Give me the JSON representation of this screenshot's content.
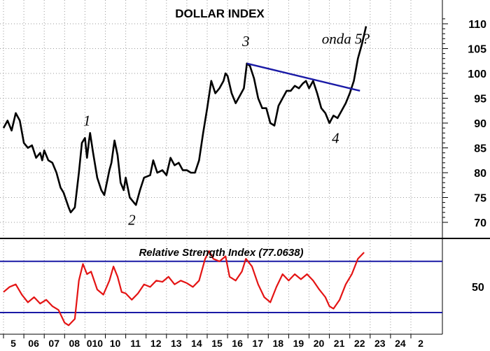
{
  "chart_data": [
    {
      "type": "line",
      "title": "DOLLAR INDEX",
      "ylim": [
        67,
        112
      ],
      "y_ticks": [
        "70",
        "75",
        "80",
        "85",
        "90",
        "95",
        "100",
        "105",
        "110"
      ],
      "x_ticks": [
        "5",
        "06",
        "07",
        "08",
        "010",
        "10",
        "11",
        "12",
        "13",
        "14",
        "15",
        "16",
        "17",
        "18",
        "19",
        "20",
        "21",
        "22",
        "23",
        "24",
        "2"
      ],
      "grid": true,
      "colors": {
        "price": "#000000",
        "trendline": "#1a1aa6"
      },
      "series": [
        {
          "values": [
            [
              2005.0,
              89
            ],
            [
              2005.2,
              90.5
            ],
            [
              2005.4,
              88.5
            ],
            [
              2005.6,
              92
            ],
            [
              2005.8,
              90.5
            ],
            [
              2006.0,
              86
            ],
            [
              2006.2,
              85
            ],
            [
              2006.4,
              85.5
            ],
            [
              2006.6,
              83
            ],
            [
              2006.8,
              84
            ],
            [
              2006.9,
              82.5
            ],
            [
              2007.0,
              84.5
            ],
            [
              2007.2,
              82.5
            ],
            [
              2007.4,
              82
            ],
            [
              2007.6,
              80
            ],
            [
              2007.8,
              77
            ],
            [
              2007.95,
              76
            ],
            [
              2008.2,
              73
            ],
            [
              2008.3,
              72
            ],
            [
              2008.5,
              73
            ],
            [
              2008.7,
              80
            ],
            [
              2008.85,
              86
            ],
            [
              2009.0,
              87
            ],
            [
              2009.1,
              83
            ],
            [
              2009.2,
              86.5
            ],
            [
              2009.25,
              88
            ],
            [
              2009.4,
              84
            ],
            [
              2009.6,
              79
            ],
            [
              2009.8,
              76.5
            ],
            [
              2009.95,
              75.5
            ],
            [
              2010.2,
              80.5
            ],
            [
              2010.3,
              82
            ],
            [
              2010.45,
              86.5
            ],
            [
              2010.6,
              83.5
            ],
            [
              2010.75,
              78
            ],
            [
              2010.9,
              76.5
            ],
            [
              2011.0,
              79
            ],
            [
              2011.2,
              75
            ],
            [
              2011.4,
              74
            ],
            [
              2011.5,
              73.5
            ],
            [
              2011.7,
              76.5
            ],
            [
              2011.9,
              79
            ],
            [
              2012.2,
              79.5
            ],
            [
              2012.35,
              82.5
            ],
            [
              2012.55,
              80
            ],
            [
              2012.8,
              80.5
            ],
            [
              2013.0,
              79.5
            ],
            [
              2013.2,
              83
            ],
            [
              2013.4,
              81.5
            ],
            [
              2013.6,
              82
            ],
            [
              2013.8,
              80.5
            ],
            [
              2014.0,
              80.5
            ],
            [
              2014.2,
              80
            ],
            [
              2014.4,
              80
            ],
            [
              2014.6,
              82.5
            ],
            [
              2014.8,
              88
            ],
            [
              2015.0,
              93
            ],
            [
              2015.2,
              98.5
            ],
            [
              2015.4,
              96
            ],
            [
              2015.6,
              97
            ],
            [
              2015.8,
              98.5
            ],
            [
              2015.9,
              100
            ],
            [
              2016.0,
              99.5
            ],
            [
              2016.2,
              96
            ],
            [
              2016.4,
              94
            ],
            [
              2016.6,
              95.5
            ],
            [
              2016.8,
              97
            ],
            [
              2016.95,
              102
            ],
            [
              2017.1,
              101.5
            ],
            [
              2017.3,
              99
            ],
            [
              2017.5,
              95
            ],
            [
              2017.7,
              93
            ],
            [
              2017.9,
              93
            ],
            [
              2018.1,
              90
            ],
            [
              2018.3,
              89.5
            ],
            [
              2018.5,
              93.5
            ],
            [
              2018.7,
              95
            ],
            [
              2018.9,
              96.5
            ],
            [
              2019.1,
              96.5
            ],
            [
              2019.3,
              97.5
            ],
            [
              2019.5,
              97
            ],
            [
              2019.7,
              98
            ],
            [
              2019.85,
              98.5
            ],
            [
              2020.0,
              97
            ],
            [
              2020.2,
              98.5
            ],
            [
              2020.4,
              96
            ],
            [
              2020.6,
              93
            ],
            [
              2020.8,
              92
            ],
            [
              2021.0,
              90
            ],
            [
              2021.2,
              91.5
            ],
            [
              2021.4,
              91
            ],
            [
              2021.6,
              92.5
            ],
            [
              2021.8,
              94
            ],
            [
              2022.0,
              96
            ],
            [
              2022.2,
              98.5
            ],
            [
              2022.4,
              103
            ],
            [
              2022.6,
              106
            ],
            [
              2022.8,
              109.5
            ]
          ]
        }
      ],
      "trendline": {
        "x": [
          2016.95,
          2022.5
        ],
        "y": [
          102,
          96.5
        ]
      },
      "annotations": [
        {
          "text": "1",
          "x": 2009.1,
          "y": 89.5
        },
        {
          "text": "2",
          "x": 2011.3,
          "y": 69.5
        },
        {
          "text": "3",
          "x": 2016.9,
          "y": 105.5
        },
        {
          "text": "4",
          "x": 2021.3,
          "y": 86
        },
        {
          "text": "onda 5?",
          "x": 2021.8,
          "y": 106
        }
      ]
    },
    {
      "type": "line",
      "title": "Relative Strength Index (77.0638)",
      "y_ticks": [
        "50"
      ],
      "ylim": [
        0,
        100
      ],
      "reference_lines": [
        70,
        30
      ],
      "colors": {
        "rsi": "#e41414",
        "reference_lines": "#1a1aa6"
      },
      "series": [
        {
          "values": [
            [
              2005.0,
              46
            ],
            [
              2005.3,
              50
            ],
            [
              2005.6,
              52
            ],
            [
              2005.9,
              44
            ],
            [
              2006.2,
              38
            ],
            [
              2006.5,
              42
            ],
            [
              2006.8,
              37
            ],
            [
              2007.1,
              40
            ],
            [
              2007.4,
              35
            ],
            [
              2007.7,
              32
            ],
            [
              2008.0,
              22
            ],
            [
              2008.2,
              20
            ],
            [
              2008.5,
              25
            ],
            [
              2008.7,
              55
            ],
            [
              2008.9,
              68
            ],
            [
              2009.1,
              60
            ],
            [
              2009.3,
              62
            ],
            [
              2009.6,
              48
            ],
            [
              2009.9,
              44
            ],
            [
              2010.2,
              55
            ],
            [
              2010.4,
              66
            ],
            [
              2010.6,
              58
            ],
            [
              2010.8,
              46
            ],
            [
              2011.0,
              45
            ],
            [
              2011.3,
              40
            ],
            [
              2011.6,
              45
            ],
            [
              2011.9,
              52
            ],
            [
              2012.2,
              50
            ],
            [
              2012.5,
              55
            ],
            [
              2012.8,
              54
            ],
            [
              2013.1,
              58
            ],
            [
              2013.4,
              52
            ],
            [
              2013.7,
              55
            ],
            [
              2014.0,
              53
            ],
            [
              2014.3,
              50
            ],
            [
              2014.6,
              55
            ],
            [
              2014.9,
              72
            ],
            [
              2015.1,
              78
            ],
            [
              2015.3,
              72
            ],
            [
              2015.6,
              70
            ],
            [
              2015.9,
              74
            ],
            [
              2016.1,
              58
            ],
            [
              2016.4,
              55
            ],
            [
              2016.7,
              62
            ],
            [
              2016.9,
              72
            ],
            [
              2017.2,
              66
            ],
            [
              2017.5,
              52
            ],
            [
              2017.8,
              42
            ],
            [
              2018.1,
              38
            ],
            [
              2018.4,
              50
            ],
            [
              2018.7,
              60
            ],
            [
              2019.0,
              55
            ],
            [
              2019.3,
              60
            ],
            [
              2019.6,
              56
            ],
            [
              2019.9,
              60
            ],
            [
              2020.2,
              55
            ],
            [
              2020.5,
              48
            ],
            [
              2020.8,
              42
            ],
            [
              2021.0,
              35
            ],
            [
              2021.2,
              33
            ],
            [
              2021.5,
              40
            ],
            [
              2021.8,
              52
            ],
            [
              2022.1,
              60
            ],
            [
              2022.4,
              72
            ],
            [
              2022.7,
              77
            ]
          ]
        }
      ]
    }
  ]
}
